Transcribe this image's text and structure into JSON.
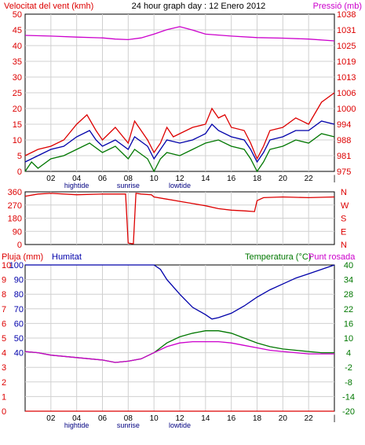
{
  "chart_data": [
    {
      "type": "line",
      "title": "24 hour graph day : 12 Enero 2012",
      "left_axis_title": "Velocitat del vent (kmh)",
      "right_axis_title": "Pressió (mb)",
      "grid": true,
      "x_ticks": [
        "02",
        "04",
        "06",
        "08",
        "10",
        "12",
        "14",
        "16",
        "18",
        "20",
        "22"
      ],
      "x_end_tick": "|",
      "annotations": [
        {
          "text": "hightide",
          "x": 4
        },
        {
          "text": "sunrise",
          "x": 8
        },
        {
          "text": "lowtide",
          "x": 12
        }
      ],
      "left_ticks": [
        "0",
        "5",
        "10",
        "15",
        "20",
        "25",
        "30",
        "35",
        "40",
        "45",
        "50"
      ],
      "left_ylim": [
        0,
        50
      ],
      "right_ticks": [
        "975",
        "981",
        "988",
        "994",
        "1000",
        "1006",
        "1013",
        "1019",
        "1025",
        "1031",
        "1038"
      ],
      "right_ylim": [
        975,
        1038
      ],
      "colors": {
        "gust": "#dd0000",
        "avg": "#0000aa",
        "lull": "#007700",
        "pressure": "#cc00cc"
      },
      "series": [
        {
          "key": "pressure",
          "axis": "right",
          "points": [
            [
              0,
              1029.5
            ],
            [
              2,
              1029.2
            ],
            [
              4,
              1028.8
            ],
            [
              6,
              1028.5
            ],
            [
              7,
              1028.0
            ],
            [
              8,
              1027.8
            ],
            [
              9,
              1028.5
            ],
            [
              10,
              1030.0
            ],
            [
              11,
              1031.8
            ],
            [
              12,
              1033.0
            ],
            [
              13,
              1031.6
            ],
            [
              14,
              1030.0
            ],
            [
              16,
              1029.2
            ],
            [
              18,
              1028.6
            ],
            [
              20,
              1028.4
            ],
            [
              22,
              1028.0
            ],
            [
              24,
              1027.3
            ]
          ]
        },
        {
          "key": "gust",
          "axis": "left",
          "points": [
            [
              0,
              5
            ],
            [
              1,
              7
            ],
            [
              2,
              8
            ],
            [
              3,
              10
            ],
            [
              4,
              15
            ],
            [
              4.8,
              18
            ],
            [
              5.5,
              13
            ],
            [
              6,
              10
            ],
            [
              7,
              14
            ],
            [
              8,
              9
            ],
            [
              8.5,
              16
            ],
            [
              9.5,
              10
            ],
            [
              10,
              6
            ],
            [
              10.5,
              9
            ],
            [
              11,
              14
            ],
            [
              11.5,
              11
            ],
            [
              12,
              12
            ],
            [
              13,
              14
            ],
            [
              14,
              15
            ],
            [
              14.5,
              20
            ],
            [
              15,
              17
            ],
            [
              15.5,
              18
            ],
            [
              16,
              14
            ],
            [
              17,
              13
            ],
            [
              17.5,
              9
            ],
            [
              18,
              4
            ],
            [
              18.5,
              8
            ],
            [
              19,
              13
            ],
            [
              20,
              14
            ],
            [
              21,
              17
            ],
            [
              22,
              15
            ],
            [
              23,
              22
            ],
            [
              24,
              25
            ]
          ]
        },
        {
          "key": "avg",
          "axis": "left",
          "points": [
            [
              0,
              3
            ],
            [
              1,
              5
            ],
            [
              2,
              7
            ],
            [
              3,
              8
            ],
            [
              4,
              11
            ],
            [
              5,
              13
            ],
            [
              5.5,
              10
            ],
            [
              6,
              8
            ],
            [
              7,
              10
            ],
            [
              8,
              7
            ],
            [
              8.5,
              11
            ],
            [
              9.5,
              8
            ],
            [
              10,
              4
            ],
            [
              10.5,
              7
            ],
            [
              11,
              10
            ],
            [
              12,
              9
            ],
            [
              13,
              10
            ],
            [
              14,
              12
            ],
            [
              14.5,
              15
            ],
            [
              15,
              13
            ],
            [
              16,
              11
            ],
            [
              17,
              10
            ],
            [
              17.5,
              7
            ],
            [
              18,
              3
            ],
            [
              18.5,
              6
            ],
            [
              19,
              10
            ],
            [
              20,
              11
            ],
            [
              21,
              13
            ],
            [
              22,
              13
            ],
            [
              23,
              16
            ],
            [
              24,
              15
            ]
          ]
        },
        {
          "key": "lull",
          "axis": "left",
          "points": [
            [
              0,
              0
            ],
            [
              0.5,
              3
            ],
            [
              1,
              1
            ],
            [
              2,
              4
            ],
            [
              3,
              5
            ],
            [
              4,
              7
            ],
            [
              5,
              9
            ],
            [
              6,
              6
            ],
            [
              7,
              8
            ],
            [
              8,
              4
            ],
            [
              8.5,
              7
            ],
            [
              9.5,
              4
            ],
            [
              10,
              0
            ],
            [
              10.5,
              4
            ],
            [
              11,
              6
            ],
            [
              12,
              5
            ],
            [
              13,
              7
            ],
            [
              14,
              9
            ],
            [
              15,
              10
            ],
            [
              16,
              8
            ],
            [
              17,
              7
            ],
            [
              17.5,
              4
            ],
            [
              18,
              0
            ],
            [
              18.5,
              3
            ],
            [
              19,
              7
            ],
            [
              20,
              8
            ],
            [
              21,
              10
            ],
            [
              22,
              9
            ],
            [
              23,
              12
            ],
            [
              24,
              11
            ]
          ]
        }
      ]
    },
    {
      "type": "line",
      "left_ticks": [
        "0",
        "90",
        "180",
        "270",
        "360"
      ],
      "ylim": [
        0,
        360
      ],
      "compass": [
        "N",
        "W",
        "S",
        "E",
        "N"
      ],
      "color": "#dd0000",
      "series": [
        {
          "points": [
            [
              0,
              330
            ],
            [
              1,
              345
            ],
            [
              2,
              350
            ],
            [
              4,
              340
            ],
            [
              6,
              345
            ],
            [
              7.8,
              345
            ],
            [
              8,
              10
            ],
            [
              8.4,
              5
            ],
            [
              8.6,
              350
            ],
            [
              9,
              345
            ],
            [
              9.8,
              340
            ],
            [
              10,
              325
            ],
            [
              11,
              310
            ],
            [
              12,
              295
            ],
            [
              13,
              280
            ],
            [
              14,
              265
            ],
            [
              15,
              245
            ],
            [
              16,
              235
            ],
            [
              17,
              230
            ],
            [
              17.8,
              225
            ],
            [
              18,
              300
            ],
            [
              18.5,
              320
            ],
            [
              20,
              325
            ],
            [
              22,
              320
            ],
            [
              24,
              325
            ]
          ]
        }
      ]
    },
    {
      "type": "line",
      "left_axis_title": "Pluja (mm)",
      "humidity_title": "Humitat",
      "right_axis_title": "Temperatura (°C)",
      "dewpoint_title": "Punt rosada",
      "rain_ticks": [
        "0",
        "1",
        "2",
        "3",
        "4",
        "5",
        "6",
        "7",
        "8",
        "9",
        "10"
      ],
      "rain_ylim": [
        0,
        10
      ],
      "humidity_ticks": [
        "100",
        "90",
        "80",
        "70",
        "60",
        "50",
        "40"
      ],
      "humidity_ylim": [
        0,
        100
      ],
      "temp_ticks": [
        "40",
        "34",
        "28",
        "22",
        "16",
        "10",
        "4",
        "-2",
        "-8",
        "-14",
        "-20"
      ],
      "temp_ylim": [
        -20,
        40
      ],
      "x_ticks": [
        "02",
        "04",
        "06",
        "08",
        "10",
        "12",
        "14",
        "16",
        "18",
        "20",
        "22"
      ],
      "x_end_tick": "|",
      "annotations": [
        {
          "text": "hightide",
          "x": 4
        },
        {
          "text": "sunrise",
          "x": 8
        },
        {
          "text": "lowtide",
          "x": 12
        }
      ],
      "colors": {
        "rain": "#dd0000",
        "humidity": "#0000aa",
        "temperature": "#007700",
        "dewpoint": "#cc00cc"
      },
      "series": [
        {
          "key": "rain",
          "axis": "rain",
          "points": [
            [
              0,
              0
            ],
            [
              24,
              0
            ]
          ]
        },
        {
          "key": "humidity",
          "axis": "humidity",
          "points": [
            [
              0,
              100
            ],
            [
              2,
              100
            ],
            [
              4,
              100
            ],
            [
              6,
              100
            ],
            [
              8,
              100
            ],
            [
              10,
              100
            ],
            [
              10.5,
              97
            ],
            [
              11,
              90
            ],
            [
              12,
              80
            ],
            [
              13,
              71
            ],
            [
              14,
              66
            ],
            [
              14.5,
              63
            ],
            [
              15,
              64
            ],
            [
              16,
              67
            ],
            [
              17,
              72
            ],
            [
              18,
              78
            ],
            [
              19,
              83
            ],
            [
              20,
              87
            ],
            [
              21,
              91
            ],
            [
              22,
              94
            ],
            [
              23,
              97
            ],
            [
              24,
              100
            ]
          ]
        },
        {
          "key": "temperature",
          "axis": "temp",
          "points": [
            [
              0,
              4.5
            ],
            [
              1,
              4
            ],
            [
              2,
              3
            ],
            [
              4,
              2
            ],
            [
              6,
              1
            ],
            [
              7,
              0
            ],
            [
              8,
              0.5
            ],
            [
              9,
              1.5
            ],
            [
              10,
              4
            ],
            [
              11,
              8
            ],
            [
              12,
              10.5
            ],
            [
              13,
              12
            ],
            [
              14,
              13
            ],
            [
              15,
              13
            ],
            [
              16,
              12
            ],
            [
              17,
              10
            ],
            [
              18,
              8
            ],
            [
              19,
              6.5
            ],
            [
              20,
              5.5
            ],
            [
              21,
              5
            ],
            [
              22,
              4.5
            ],
            [
              23,
              4
            ],
            [
              24,
              4
            ]
          ]
        },
        {
          "key": "dewpoint",
          "axis": "temp",
          "points": [
            [
              0,
              4.5
            ],
            [
              1,
              4
            ],
            [
              2,
              3
            ],
            [
              4,
              2
            ],
            [
              6,
              1
            ],
            [
              7,
              0
            ],
            [
              8,
              0.5
            ],
            [
              9,
              1.5
            ],
            [
              10,
              4
            ],
            [
              11,
              6.5
            ],
            [
              12,
              8
            ],
            [
              13,
              8.5
            ],
            [
              14,
              8.5
            ],
            [
              15,
              8.5
            ],
            [
              16,
              8
            ],
            [
              17,
              7
            ],
            [
              18,
              6
            ],
            [
              19,
              5
            ],
            [
              20,
              4.5
            ],
            [
              21,
              4
            ],
            [
              22,
              3.5
            ],
            [
              23,
              3.5
            ],
            [
              24,
              3.5
            ]
          ]
        }
      ]
    }
  ]
}
